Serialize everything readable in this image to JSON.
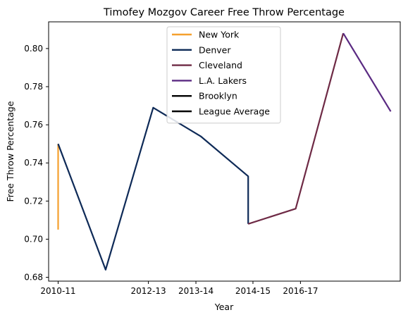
{
  "chart_data": {
    "type": "line",
    "title": "Timofey Mozgov Career Free Throw Percentage",
    "xlabel": "Year",
    "ylabel": "Free Throw Percentage",
    "xlim": [
      -0.2,
      7.2
    ],
    "ylim": [
      0.678,
      0.814
    ],
    "x_ticks": [
      {
        "x": 0,
        "label": "2010-11"
      },
      {
        "x": 1.9,
        "label": "2012-13"
      },
      {
        "x": 2.9,
        "label": "2013-14"
      },
      {
        "x": 4.1,
        "label": "2014-15"
      },
      {
        "x": 5.1,
        "label": "2016-17"
      }
    ],
    "y_ticks": [
      0.68,
      0.7,
      0.72,
      0.74,
      0.76,
      0.78,
      0.8
    ],
    "grid": false,
    "legend": "top-center",
    "series": [
      {
        "name": "New York",
        "color": "#F5A02E",
        "points": [
          [
            0,
            0.705
          ],
          [
            0,
            0.75
          ]
        ]
      },
      {
        "name": "Denver",
        "color": "#0E2A57",
        "points": [
          [
            0,
            0.75
          ],
          [
            1.0,
            0.684
          ],
          [
            2.0,
            0.769
          ],
          [
            3.0,
            0.754
          ],
          [
            4.0,
            0.733
          ],
          [
            4.0,
            0.708
          ]
        ]
      },
      {
        "name": "Cleveland",
        "color": "#6E2A45",
        "points": [
          [
            4.0,
            0.708
          ],
          [
            5.0,
            0.716
          ],
          [
            6.0,
            0.808
          ]
        ]
      },
      {
        "name": "L.A. Lakers",
        "color": "#5A2A82",
        "points": [
          [
            6.0,
            0.808
          ],
          [
            7.0,
            0.767
          ]
        ]
      },
      {
        "name": "Brooklyn",
        "color": "#000000",
        "points": []
      },
      {
        "name": "League Average",
        "color": "#000000",
        "points": []
      }
    ]
  }
}
